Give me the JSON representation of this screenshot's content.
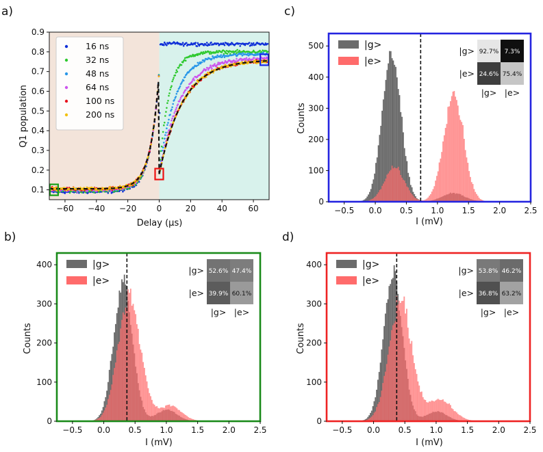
{
  "chart_data": [
    {
      "id": "a",
      "panel_label": "a)",
      "type": "scatter",
      "xlabel": "Delay (μs)",
      "ylabel": "Q1 population",
      "xlim": [
        -70,
        70
      ],
      "ylim": [
        0.05,
        0.9
      ],
      "xticks": [
        -60,
        -40,
        -20,
        0,
        20,
        40,
        60
      ],
      "yticks": [
        0.1,
        0.2,
        0.3,
        0.4,
        0.5,
        0.6,
        0.7,
        0.8,
        0.9
      ],
      "shading": [
        {
          "name": "before",
          "range": [
            -70,
            0
          ],
          "color": "#f3e4da"
        },
        {
          "name": "after",
          "range": [
            0,
            70
          ],
          "color": "#d8f2ec"
        }
      ],
      "legend_position": "top-left",
      "series": [
        {
          "name": "16 ns",
          "color": "#1030d8",
          "y0": 0.09,
          "plateau": 0.84,
          "tau": 0.4
        },
        {
          "name": "32 ns",
          "color": "#2ec92e",
          "y0": 0.095,
          "plateau": 0.8,
          "tau": 6
        },
        {
          "name": "48 ns",
          "color": "#2a97e8",
          "y0": 0.1,
          "plateau": 0.79,
          "tau": 10
        },
        {
          "name": "64 ns",
          "color": "#cc55ee",
          "y0": 0.1,
          "plateau": 0.77,
          "tau": 13
        },
        {
          "name": "100 ns",
          "color": "#e8141e",
          "y0": 0.105,
          "plateau": 0.76,
          "tau": 15
        },
        {
          "name": "200 ns",
          "color": "#f2c10e",
          "y0": 0.105,
          "plateau": 0.76,
          "tau": 15
        }
      ],
      "markers": [
        {
          "name": "green-box",
          "color": "#18a018",
          "x": -67,
          "y": 0.1
        },
        {
          "name": "red-box",
          "color": "#ee1111",
          "x": 0,
          "y": 0.18
        },
        {
          "name": "blue-box",
          "color": "#1a28e8",
          "x": 67,
          "y": 0.76
        }
      ]
    },
    {
      "id": "c",
      "panel_label": "c)",
      "type": "histogram",
      "frame_color": "#2424e0",
      "xlabel": "I (mV)",
      "ylabel": "Counts",
      "xlim": [
        -0.75,
        2.5
      ],
      "ylim": [
        0,
        540
      ],
      "xticks": [
        -0.5,
        0.0,
        0.5,
        1.0,
        1.5,
        2.0,
        2.5
      ],
      "xtick_labels": [
        "−0.5",
        "0.0",
        "0.5",
        "1.0",
        "1.5",
        "2.0",
        "2.5"
      ],
      "yticks": [
        0,
        100,
        200,
        300,
        400,
        500
      ],
      "threshold": 0.73,
      "series": [
        {
          "name": "|g>",
          "color": "#6b6b6b",
          "peaks": [
            {
              "mu": 0.25,
              "sigma": 0.15,
              "amp": 480
            },
            {
              "mu": 1.25,
              "sigma": 0.18,
              "amp": 28
            }
          ]
        },
        {
          "name": "|e>",
          "color": "#ff6b6b",
          "peaks": [
            {
              "mu": 0.3,
              "sigma": 0.16,
              "amp": 110
            },
            {
              "mu": 1.25,
              "sigma": 0.16,
              "amp": 350
            }
          ]
        }
      ],
      "confusion_matrix": {
        "row_labels": [
          "|g>",
          "|e>"
        ],
        "col_labels": [
          "|g>",
          "|e>"
        ],
        "values": [
          [
            "92.7%",
            "7.3%"
          ],
          [
            "24.6%",
            "75.4%"
          ]
        ],
        "shades": [
          [
            "#e6e6e6",
            "#0f0f0f"
          ],
          [
            "#3e3e3e",
            "#c6c6c6"
          ]
        ]
      }
    },
    {
      "id": "b",
      "panel_label": "b)",
      "type": "histogram",
      "frame_color": "#1a8a1a",
      "xlabel": "I (mV)",
      "ylabel": "Counts",
      "xlim": [
        -0.75,
        2.5
      ],
      "ylim": [
        0,
        430
      ],
      "xticks": [
        -0.5,
        0.0,
        0.5,
        1.0,
        1.5,
        2.0,
        2.5
      ],
      "xtick_labels": [
        "−0.5",
        "0.0",
        "0.5",
        "1.0",
        "1.5",
        "2.0",
        "2.5"
      ],
      "yticks": [
        0,
        100,
        200,
        300,
        400
      ],
      "threshold": 0.37,
      "series": [
        {
          "name": "|g>",
          "color": "#6b6b6b",
          "peaks": [
            {
              "mu": 0.3,
              "sigma": 0.15,
              "amp": 360
            },
            {
              "mu": 1.0,
              "sigma": 0.16,
              "amp": 30
            }
          ]
        },
        {
          "name": "|e>",
          "color": "#ff6b6b",
          "peaks": [
            {
              "mu": 0.4,
              "sigma": 0.18,
              "amp": 320
            },
            {
              "mu": 1.05,
              "sigma": 0.18,
              "amp": 40
            }
          ]
        }
      ],
      "confusion_matrix": {
        "row_labels": [
          "|g>",
          "|e>"
        ],
        "col_labels": [
          "|g>",
          "|e>"
        ],
        "values": [
          [
            "52.6%",
            "47.4%"
          ],
          [
            "39.9%",
            "60.1%"
          ]
        ],
        "shades": [
          [
            "#737373",
            "#7d7d7d"
          ],
          [
            "#5c5c5c",
            "#9a9a9a"
          ]
        ]
      }
    },
    {
      "id": "d",
      "panel_label": "d)",
      "type": "histogram",
      "frame_color": "#ee2222",
      "xlabel": "I (mV)",
      "ylabel": "Counts",
      "xlim": [
        -0.75,
        2.5
      ],
      "ylim": [
        0,
        430
      ],
      "xticks": [
        -0.5,
        0.0,
        0.5,
        1.0,
        1.5,
        2.0,
        2.5
      ],
      "xtick_labels": [
        "−0.5",
        "0.0",
        "0.5",
        "1.0",
        "1.5",
        "2.0",
        "2.5"
      ],
      "yticks": [
        0,
        100,
        200,
        300,
        400
      ],
      "threshold": 0.37,
      "series": [
        {
          "name": "|g>",
          "color": "#6b6b6b",
          "peaks": [
            {
              "mu": 0.3,
              "sigma": 0.15,
              "amp": 370
            },
            {
              "mu": 1.0,
              "sigma": 0.16,
              "amp": 25
            }
          ]
        },
        {
          "name": "|e>",
          "color": "#ff6b6b",
          "peaks": [
            {
              "mu": 0.42,
              "sigma": 0.18,
              "amp": 310
            },
            {
              "mu": 1.05,
              "sigma": 0.2,
              "amp": 55
            }
          ]
        }
      ],
      "confusion_matrix": {
        "row_labels": [
          "|g>",
          "|e>"
        ],
        "col_labels": [
          "|g>",
          "|e>"
        ],
        "values": [
          [
            "53.8%",
            "46.2%"
          ],
          [
            "36.8%",
            "63.2%"
          ]
        ],
        "shades": [
          [
            "#797979",
            "#6b6b6b"
          ],
          [
            "#505050",
            "#a2a2a2"
          ]
        ]
      }
    }
  ]
}
